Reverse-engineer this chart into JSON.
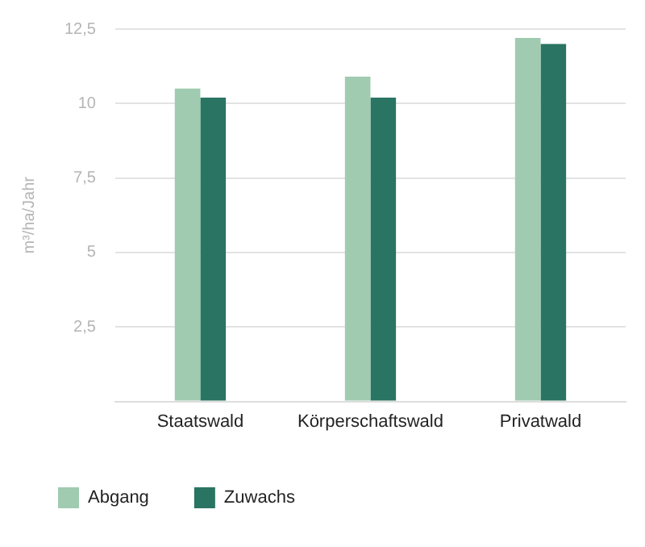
{
  "chart_data": {
    "type": "bar",
    "ylabel": "m³/ha/Jahr",
    "categories": [
      "Staatswald",
      "Körperschaftswald",
      "Privatwald"
    ],
    "series": [
      {
        "name": "Abgang",
        "color": "#a0cbb0",
        "values": [
          10.5,
          10.9,
          12.2
        ]
      },
      {
        "name": "Zuwachs",
        "color": "#2a7463",
        "values": [
          10.2,
          10.2,
          12.0
        ]
      }
    ],
    "ylim": [
      0,
      12.5
    ],
    "yticks": [
      {
        "value": 0,
        "label": null
      },
      {
        "value": 2.5,
        "label": "2,5"
      },
      5,
      {
        "value": 7.5,
        "label": "7,5"
      },
      10,
      {
        "value": 12.5,
        "label": "12,5"
      }
    ],
    "grid": "y",
    "legend": "bottom left"
  }
}
